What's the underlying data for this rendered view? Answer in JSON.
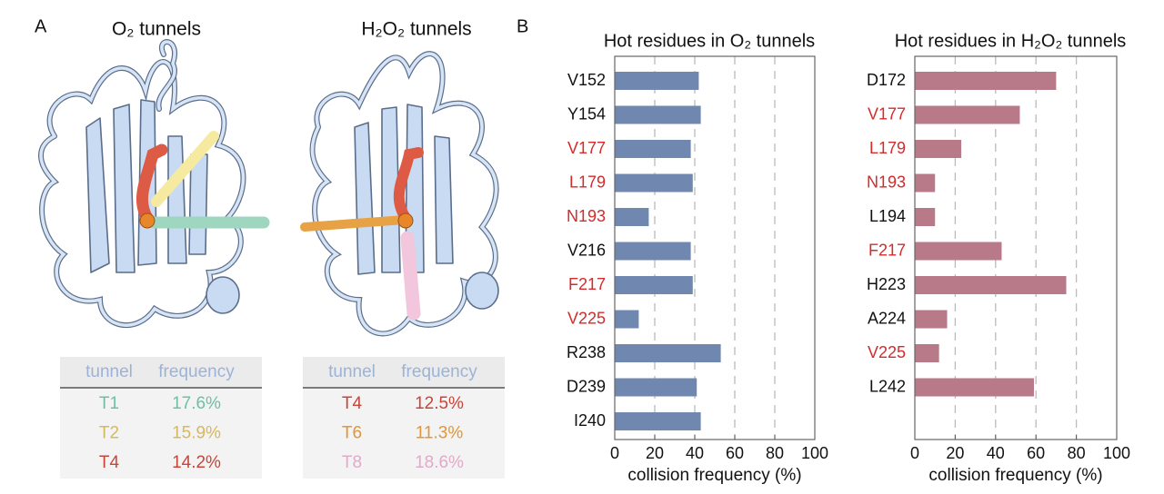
{
  "panel_labels": [
    "A",
    "B"
  ],
  "tables": [
    {
      "title": "O₂ tunnels",
      "header": [
        "tunnel",
        "frequency"
      ],
      "rows": [
        [
          "T1",
          "17.6%"
        ],
        [
          "T2",
          "15.9%"
        ],
        [
          "T4",
          "14.2%"
        ]
      ],
      "row_colors": [
        "#6fbfa3",
        "#d6b85e",
        "#c8453a"
      ]
    },
    {
      "title": "H₂O₂ tunnels",
      "header": [
        "tunnel",
        "frequency"
      ],
      "rows": [
        [
          "T4",
          "12.5%"
        ],
        [
          "T6",
          "11.3%"
        ],
        [
          "T8",
          "18.6%"
        ]
      ],
      "row_colors": [
        "#c8453a",
        "#e0963a",
        "#e2a9c8"
      ]
    }
  ],
  "chart_data": [
    {
      "type": "barh",
      "title": "Hot residues in O₂ tunnels",
      "categories": [
        "V152",
        "Y154",
        "V177",
        "L179",
        "N193",
        "V216",
        "F217",
        "V225",
        "R238",
        "D239",
        "I240"
      ],
      "category_colors": [
        "#111111",
        "#111111",
        "#d42b2b",
        "#d42b2b",
        "#d42b2b",
        "#111111",
        "#d42b2b",
        "#d42b2b",
        "#111111",
        "#111111",
        "#111111"
      ],
      "values": [
        42,
        43,
        38,
        39,
        17,
        38,
        39,
        12,
        53,
        41,
        43
      ],
      "color": "#7088b0",
      "xlabel": "collision frequency (%)",
      "xlim": [
        0,
        100
      ],
      "xticks": [
        0,
        20,
        40,
        60,
        80,
        100
      ],
      "grid": true
    },
    {
      "type": "barh",
      "title": "Hot residues in H₂O₂ tunnels",
      "categories": [
        "D172",
        "V177",
        "L179",
        "N193",
        "L194",
        "F217",
        "H223",
        "A224",
        "V225",
        "L242"
      ],
      "category_colors": [
        "#111111",
        "#d42b2b",
        "#d42b2b",
        "#d42b2b",
        "#111111",
        "#d42b2b",
        "#111111",
        "#111111",
        "#d42b2b",
        "#111111"
      ],
      "values": [
        70,
        52,
        23,
        10,
        10,
        43,
        75,
        16,
        12,
        59
      ],
      "color": "#b87a88",
      "xlabel": "collision frequency (%)",
      "xlim": [
        0,
        100
      ],
      "xticks": [
        0,
        20,
        40,
        60,
        80,
        100
      ],
      "grid": true
    }
  ]
}
